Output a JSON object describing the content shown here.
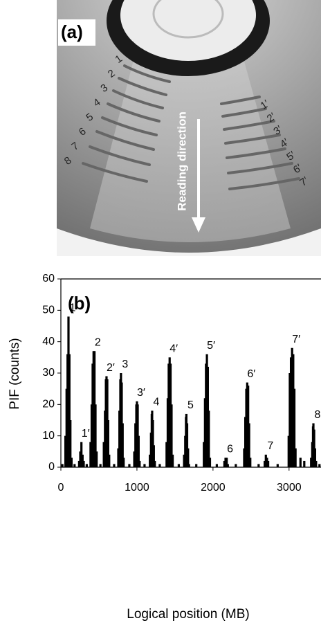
{
  "photo": {
    "label": "(a)",
    "arrow_text": "Reading direction",
    "left_marks": [
      "1",
      "2",
      "3",
      "4",
      "5",
      "6",
      "7",
      "8"
    ],
    "right_marks": [
      "1′",
      "2′",
      "3′",
      "4′",
      "5′",
      "6′",
      "7′"
    ]
  },
  "chart_data": {
    "type": "bar",
    "panel_label": "(b)",
    "x_label": "Logical position (MB)",
    "y_label": "PIF (counts)",
    "color": "#000000",
    "x": [
      60,
      75,
      88,
      100,
      112,
      125,
      140,
      240,
      255,
      270,
      285,
      300,
      390,
      405,
      418,
      430,
      442,
      455,
      470,
      565,
      580,
      592,
      600,
      610,
      622,
      635,
      755,
      770,
      782,
      790,
      800,
      812,
      825,
      965,
      980,
      992,
      1000,
      1010,
      1022,
      1035,
      1170,
      1185,
      1195,
      1200,
      1210,
      1222,
      1235,
      1390,
      1405,
      1418,
      1430,
      1442,
      1455,
      1470,
      1620,
      1635,
      1645,
      1650,
      1660,
      1672,
      1685,
      1880,
      1895,
      1908,
      1920,
      1932,
      1945,
      1960,
      2150,
      2165,
      2180,
      2195,
      2410,
      2425,
      2438,
      2450,
      2462,
      2475,
      2490,
      2680,
      2695,
      2710,
      2725,
      2995,
      3010,
      3025,
      3040,
      3055,
      3070,
      3085,
      3290,
      3305,
      3315,
      3320,
      3330,
      3342,
      3355,
      20,
      180,
      340,
      520,
      700,
      900,
      1100,
      1300,
      1550,
      1780,
      2050,
      2300,
      2600,
      2850,
      3150,
      3200,
      3400
    ],
    "values": [
      10,
      25,
      36,
      48,
      36,
      15,
      3,
      2,
      5,
      8,
      4,
      2,
      8,
      20,
      33,
      37,
      37,
      20,
      5,
      8,
      18,
      28,
      29,
      28,
      15,
      4,
      6,
      18,
      28,
      30,
      27,
      14,
      3,
      5,
      14,
      20,
      21,
      20,
      10,
      2,
      4,
      11,
      17,
      18,
      15,
      7,
      2,
      8,
      22,
      33,
      35,
      33,
      20,
      4,
      4,
      10,
      16,
      17,
      14,
      6,
      1,
      8,
      22,
      33,
      36,
      32,
      18,
      3,
      2,
      3,
      3,
      1,
      6,
      16,
      25,
      27,
      26,
      14,
      3,
      2,
      4,
      3,
      2,
      10,
      30,
      35,
      38,
      36,
      25,
      6,
      3,
      8,
      13,
      14,
      12,
      6,
      2,
      1,
      1,
      1,
      1,
      1,
      1,
      1,
      1,
      1,
      1,
      1,
      1,
      1,
      1,
      3,
      2,
      1
    ],
    "peak_labels": [
      {
        "label": "1",
        "x": 100,
        "y": 48
      },
      {
        "label": "1′",
        "x": 270,
        "y": 8
      },
      {
        "label": "2",
        "x": 430,
        "y": 37
      },
      {
        "label": "2′",
        "x": 600,
        "y": 29
      },
      {
        "label": "3",
        "x": 790,
        "y": 30
      },
      {
        "label": "3′",
        "x": 1000,
        "y": 21
      },
      {
        "label": "4",
        "x": 1200,
        "y": 18
      },
      {
        "label": "4′",
        "x": 1430,
        "y": 35
      },
      {
        "label": "5",
        "x": 1650,
        "y": 17
      },
      {
        "label": "5′",
        "x": 1920,
        "y": 36
      },
      {
        "label": "6",
        "x": 2170,
        "y": 3
      },
      {
        "label": "6′",
        "x": 2450,
        "y": 27
      },
      {
        "label": "7",
        "x": 2700,
        "y": 4
      },
      {
        "label": "7′",
        "x": 3040,
        "y": 38
      },
      {
        "label": "8",
        "x": 3320,
        "y": 14
      }
    ],
    "xlim": [
      0,
      3420
    ],
    "ylim": [
      0,
      60
    ],
    "xticks": [
      0,
      1000,
      2000,
      3000
    ],
    "yticks": [
      0,
      10,
      20,
      30,
      40,
      50,
      60
    ]
  }
}
